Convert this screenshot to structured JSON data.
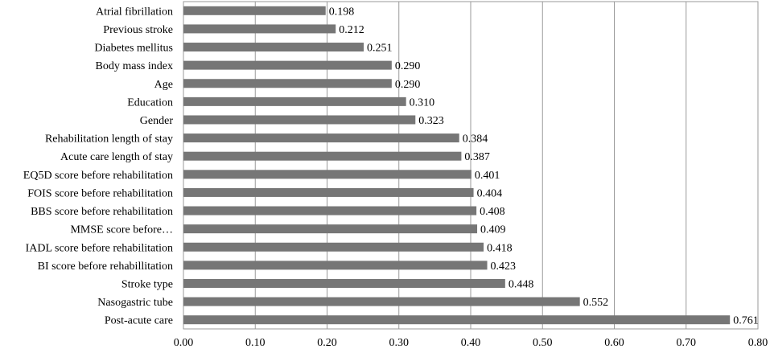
{
  "chart_data": {
    "type": "bar",
    "orientation": "horizontal",
    "title": "",
    "xlabel": "",
    "ylabel": "",
    "xlim": [
      0,
      0.8
    ],
    "grid": "vertical",
    "bar_color": "#767676",
    "categories": [
      "Atrial fibrillation",
      "Previous stroke",
      "Diabetes mellitus",
      "Body mass index",
      "Age",
      "Education",
      "Gender",
      "Rehabilitation length of stay",
      "Acute care length of stay",
      "EQ5D score before rehabilitation",
      "FOIS score before rehabilitation",
      "BBS score before rehabilitation",
      "MMSE score before…",
      "IADL score before rehabilitation",
      "BI score before rehabillitation",
      "Stroke type",
      "Nasogastric tube",
      "Post-acute care"
    ],
    "values": [
      0.198,
      0.212,
      0.251,
      0.29,
      0.29,
      0.31,
      0.323,
      0.384,
      0.387,
      0.401,
      0.404,
      0.408,
      0.409,
      0.418,
      0.423,
      0.448,
      0.552,
      0.761
    ],
    "value_labels": [
      "0.198",
      "0.212",
      "0.251",
      "0.290",
      "0.290",
      "0.310",
      "0.323",
      "0.384",
      "0.387",
      "0.401",
      "0.404",
      "0.408",
      "0.409",
      "0.418",
      "0.423",
      "0.448",
      "0.552",
      "0.761"
    ],
    "x_ticks": [
      "0.00",
      "0.10",
      "0.20",
      "0.30",
      "0.40",
      "0.50",
      "0.60",
      "0.70",
      "0.80"
    ]
  }
}
